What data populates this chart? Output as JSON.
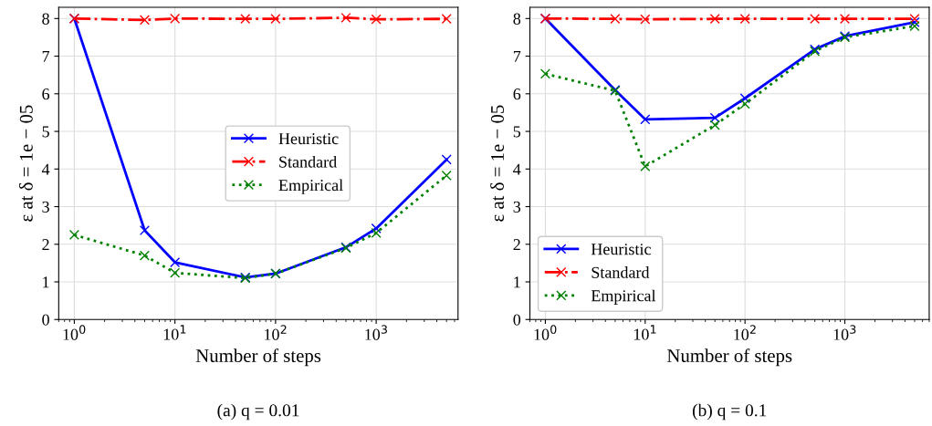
{
  "chart_data": [
    {
      "type": "line",
      "xlabel": "Number of steps",
      "ylabel": "ε at δ = 1e − 05",
      "log": "x",
      "grid": true,
      "legend": "center right",
      "marker": "cross",
      "x": [
        1,
        5,
        10,
        50,
        100,
        500,
        1000,
        5000
      ],
      "xlim": [
        0.7,
        6500
      ],
      "xticks": [
        {
          "value": 1,
          "label": "10$^{0}$"
        },
        {
          "value": 10,
          "label": "10$^{1}$"
        },
        {
          "value": 100,
          "label": "10$^{2}$"
        },
        {
          "value": 1000,
          "label": "10$^{3}$"
        }
      ],
      "ylim": [
        0,
        8.3
      ],
      "yticks": [
        0,
        1,
        2,
        3,
        4,
        5,
        6,
        7,
        8
      ],
      "series": [
        {
          "name": "Heuristic",
          "color": "#0000ff",
          "line_style": "solid",
          "values": [
            8.0,
            2.37,
            1.52,
            1.12,
            1.22,
            1.92,
            2.42,
            4.25
          ]
        },
        {
          "name": "Standard",
          "color": "#ff0000",
          "line_style": "dashdot",
          "values": [
            8.0,
            7.96,
            8.0,
            7.99,
            7.99,
            8.02,
            7.98,
            7.99
          ]
        },
        {
          "name": "Empirical",
          "color": "#008000",
          "line_style": "dotted",
          "values": [
            2.25,
            1.7,
            1.24,
            1.1,
            1.22,
            1.9,
            2.3,
            3.83
          ]
        }
      ],
      "annotations": [
        "(a) q = 0.01"
      ]
    },
    {
      "type": "line",
      "xlabel": "Number of steps",
      "ylabel": "ε at δ = 1e − 05",
      "log": "x",
      "grid": true,
      "legend": "lower left",
      "marker": "cross",
      "x": [
        1,
        5,
        10,
        50,
        100,
        500,
        1000,
        5000
      ],
      "xlim": [
        0.7,
        7000
      ],
      "xticks": [
        {
          "value": 1,
          "label": "10$^{0}$"
        },
        {
          "value": 10,
          "label": "10$^{1}$"
        },
        {
          "value": 100,
          "label": "10$^{2}$"
        },
        {
          "value": 1000,
          "label": "10$^{3}$"
        }
      ],
      "ylim": [
        0,
        8.3
      ],
      "yticks": [
        0,
        1,
        2,
        3,
        4,
        5,
        6,
        7,
        8
      ],
      "series": [
        {
          "name": "Heuristic",
          "color": "#0000ff",
          "line_style": "solid",
          "values": [
            8.0,
            6.1,
            5.32,
            5.36,
            5.88,
            7.18,
            7.53,
            7.9
          ]
        },
        {
          "name": "Standard",
          "color": "#ff0000",
          "line_style": "dashdot",
          "values": [
            8.0,
            7.99,
            7.98,
            7.99,
            7.99,
            7.99,
            7.99,
            7.99
          ]
        },
        {
          "name": "Empirical",
          "color": "#008000",
          "line_style": "dotted",
          "values": [
            6.53,
            6.08,
            4.07,
            5.17,
            5.73,
            7.13,
            7.5,
            7.8
          ]
        }
      ],
      "annotations": [
        "(b) q = 0.1"
      ]
    }
  ]
}
